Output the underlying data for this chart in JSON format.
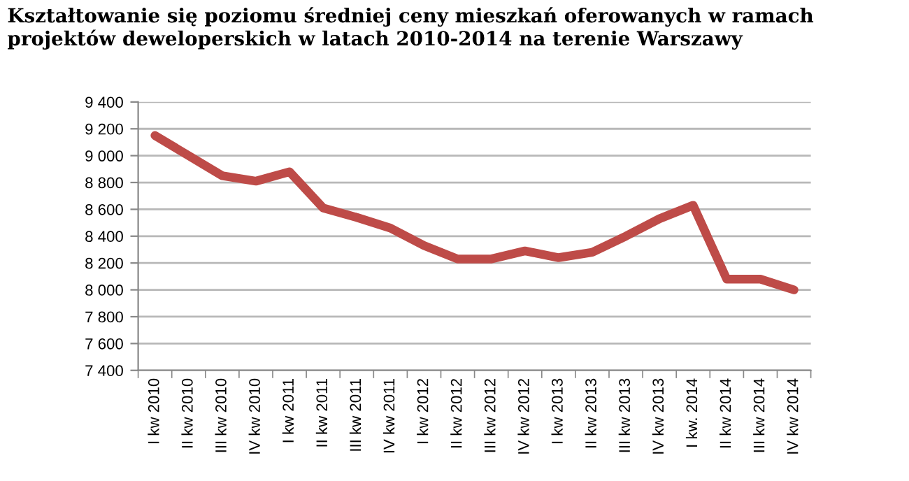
{
  "chart_data": {
    "type": "line",
    "title": "Kształtowanie się poziomu średniej ceny mieszkań oferowanych w ramach projektów deweloperskich w latach 2010-2014 na terenie Warszawy",
    "categories": [
      "I kw 2010",
      "II kw 2010",
      "III kw 2010",
      "IV kw 2010",
      "I kw 2011",
      "II kw 2011",
      "III kw 2011",
      "IV kw 2011",
      "I kw 2012",
      "II kw 2012",
      "III kw 2012",
      "IV kw 2012",
      "I kw 2013",
      "II kw 2013",
      "III kw 2013",
      "IV kw 2013",
      "I kw. 2014",
      "II kw 2014",
      "III kw 2014",
      "IV kw 2014"
    ],
    "series": [
      {
        "color": "#be4b48",
        "values": [
          9150,
          9000,
          8850,
          8810,
          8880,
          8610,
          8540,
          8460,
          8330,
          8230,
          8230,
          8290,
          8240,
          8280,
          8400,
          8530,
          8630,
          8080,
          8080,
          8000
        ]
      }
    ],
    "ylim": [
      7400,
      9400
    ],
    "yticks": [
      {
        "value": 7400,
        "label": "7 400"
      },
      {
        "value": 7600,
        "label": "7 600"
      },
      {
        "value": 7800,
        "label": "7 800"
      },
      {
        "value": 8000,
        "label": "8 000"
      },
      {
        "value": 8200,
        "label": "8 200"
      },
      {
        "value": 8400,
        "label": "8 400"
      },
      {
        "value": 8600,
        "label": "8 600"
      },
      {
        "value": 8800,
        "label": "8 800"
      },
      {
        "value": 9000,
        "label": "9 000"
      },
      {
        "value": 9200,
        "label": "9 200"
      },
      {
        "value": 9400,
        "label": "9 400"
      }
    ],
    "grid": "y",
    "legend": false,
    "marker": "none",
    "line_style": "solid"
  }
}
